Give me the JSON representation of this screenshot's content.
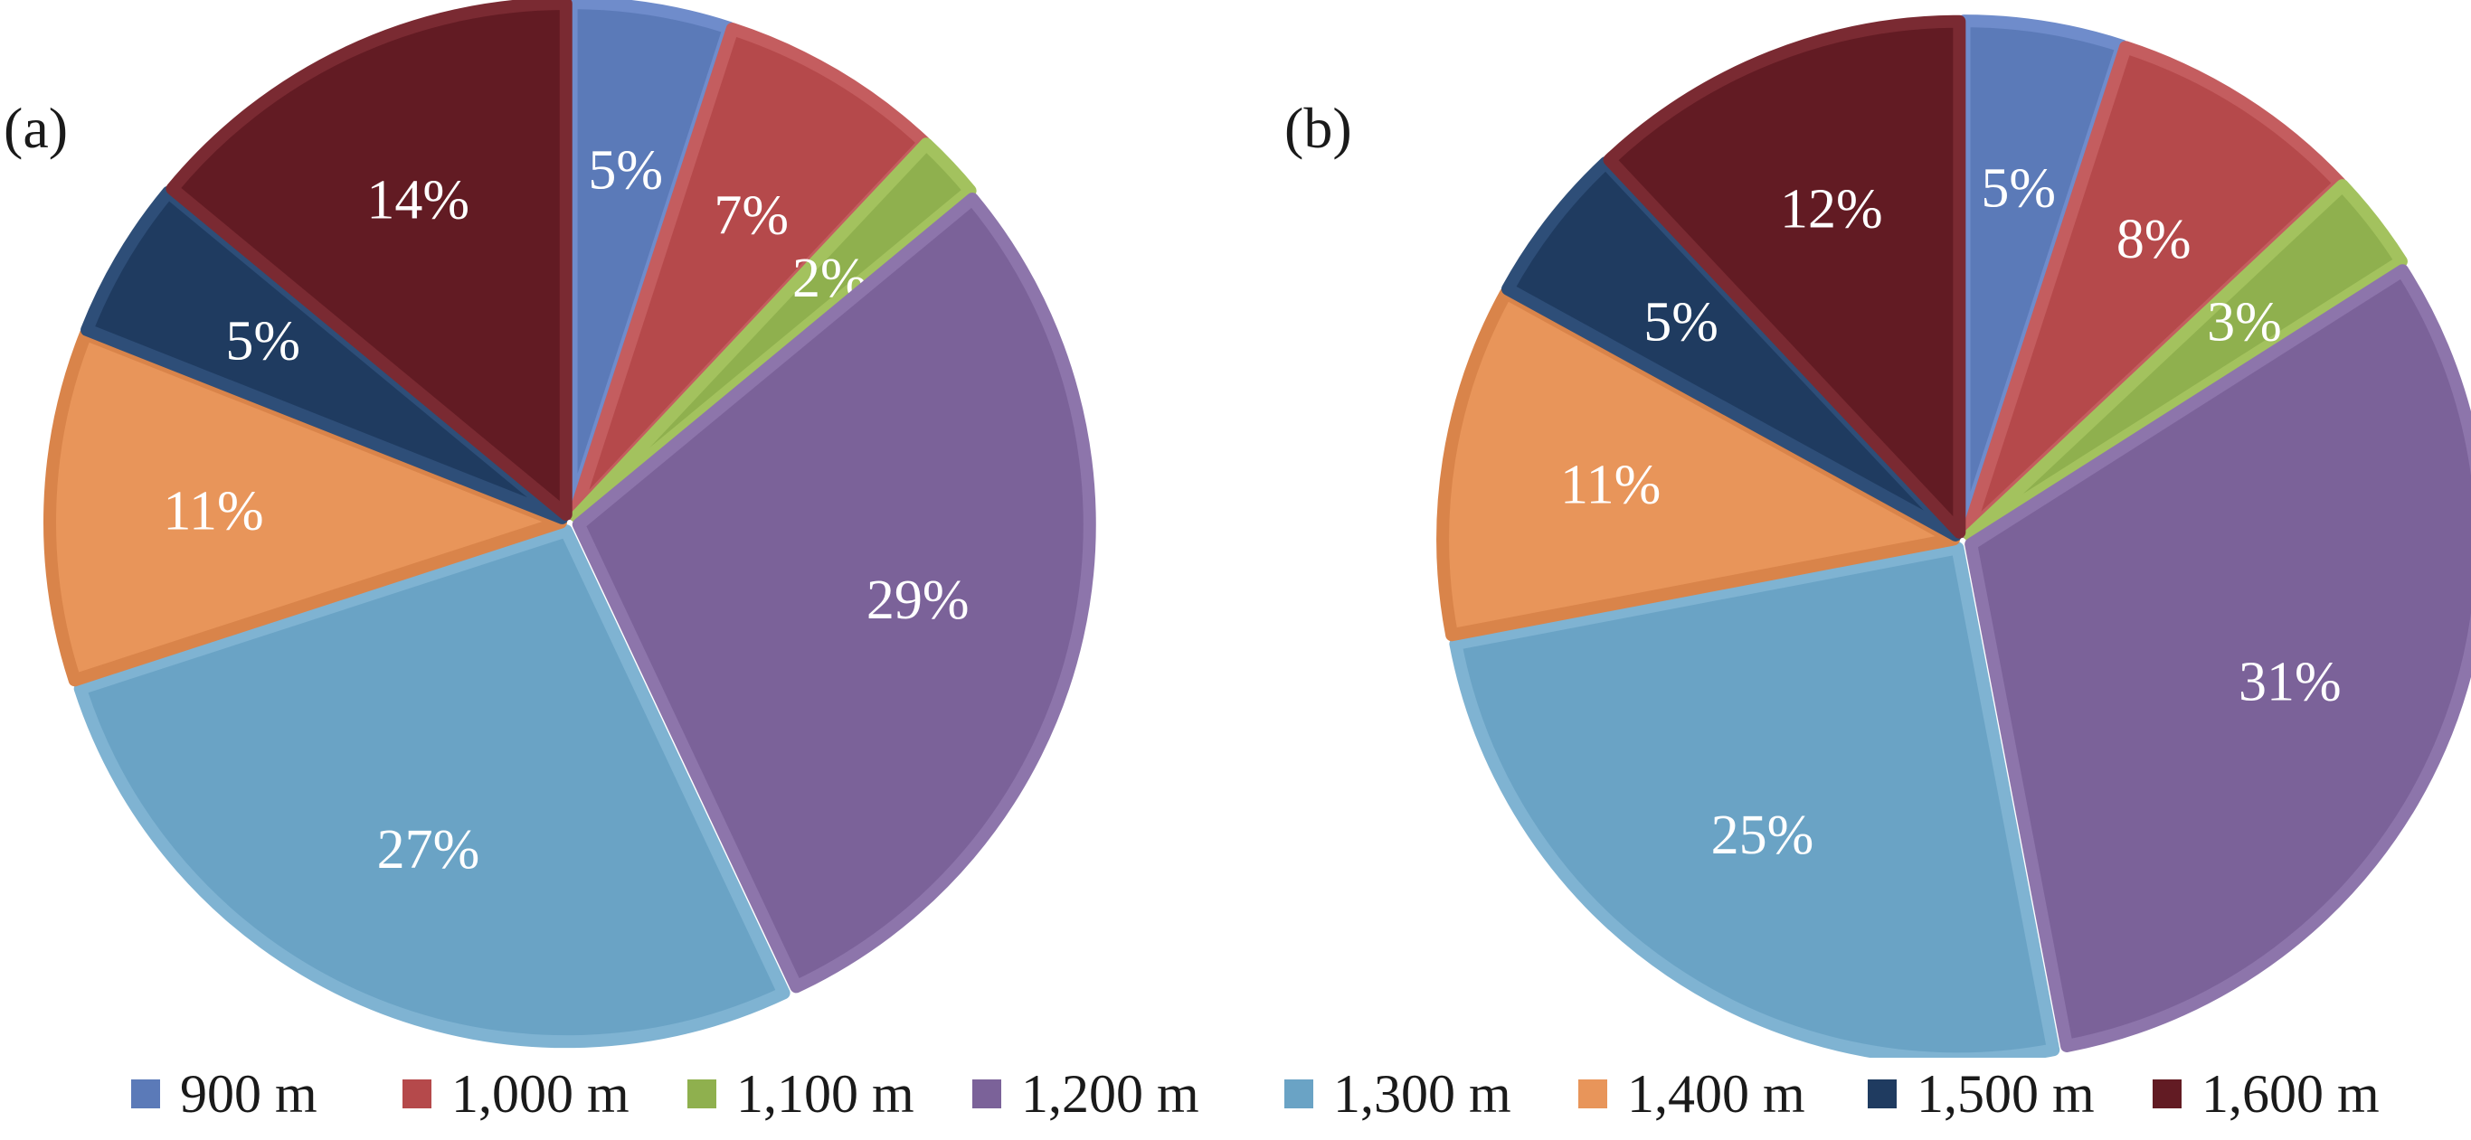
{
  "chart_data": [
    {
      "type": "pie",
      "panel_label": "(a)",
      "categories": [
        "900 m",
        "1,000 m",
        "1,100 m",
        "1,200 m",
        "1,300 m",
        "1,400 m",
        "1,500 m",
        "1,600 m"
      ],
      "values": [
        5,
        7,
        2,
        29,
        27,
        11,
        5,
        14
      ],
      "labels": [
        "5%",
        "7%",
        "2%",
        "29%",
        "27%",
        "11%",
        "5%",
        "14%"
      ],
      "exploded": true,
      "start_angle": "12 o'clock",
      "direction": "clockwise"
    },
    {
      "type": "pie",
      "panel_label": "(b)",
      "categories": [
        "900 m",
        "1,000 m",
        "1,100 m",
        "1,200 m",
        "1,300 m",
        "1,400 m",
        "1,500 m",
        "1,600 m"
      ],
      "values": [
        5,
        8,
        3,
        31,
        25,
        11,
        5,
        12
      ],
      "labels": [
        "5%",
        "8%",
        "3%",
        "31%",
        "25%",
        "11%",
        "5%",
        "12%"
      ],
      "exploded": true,
      "start_angle": "12 o'clock",
      "direction": "clockwise"
    }
  ],
  "legend": {
    "placement": "bottom",
    "items": [
      {
        "label": "900 m",
        "color": "#5b7ab8"
      },
      {
        "label": "1,000 m",
        "color": "#b5494b"
      },
      {
        "label": "1,100 m",
        "color": "#8fb04e"
      },
      {
        "label": "1,200 m",
        "color": "#7b6299"
      },
      {
        "label": "1,300 m",
        "color": "#6aa3c5"
      },
      {
        "label": "1,400 m",
        "color": "#e8955a"
      },
      {
        "label": "1,500 m",
        "color": "#1f3b60"
      },
      {
        "label": "1,600 m",
        "color": "#621b23"
      }
    ]
  },
  "colors": [
    "#5b7ab8",
    "#b5494b",
    "#8fb04e",
    "#7b6299",
    "#6aa3c5",
    "#e8955a",
    "#1f3b60",
    "#621b23"
  ],
  "border_colors": [
    "#6f8ccb",
    "#c45d5f",
    "#a3c25e",
    "#8d75ab",
    "#7fb3d2",
    "#d9844a",
    "#2e4e78",
    "#7a2a32"
  ]
}
